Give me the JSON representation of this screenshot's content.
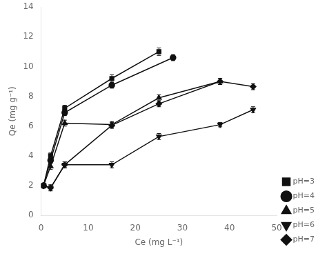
{
  "chart_data": {
    "type": "line",
    "xlabel": "Ce (mg L⁻¹)",
    "ylabel": "Qe (mg g⁻¹)",
    "color": "#111111",
    "grid": false,
    "legend": "lower right",
    "xlim": [
      0,
      50
    ],
    "ylim": [
      0,
      14
    ],
    "xticks": [
      0,
      10,
      20,
      30,
      40,
      50
    ],
    "yticks": [
      0,
      2,
      4,
      6,
      8,
      10,
      12,
      14
    ],
    "series": [
      {
        "name": "pH=3",
        "marker": "square",
        "x": [
          0.5,
          2,
          5,
          15,
          25
        ],
        "values": [
          2.0,
          4.0,
          7.2,
          9.2,
          11.0
        ],
        "yerr": [
          0.15,
          0.2,
          0.2,
          0.25,
          0.25
        ]
      },
      {
        "name": "pH=4",
        "marker": "circle",
        "x": [
          0.5,
          2,
          5,
          15,
          28
        ],
        "values": [
          2.0,
          3.7,
          6.9,
          8.75,
          10.6
        ],
        "yerr": [
          0.15,
          0.2,
          0.2,
          0.2,
          0.2
        ]
      },
      {
        "name": "pH=5",
        "marker": "triangle-up",
        "x": [
          0.5,
          2,
          5,
          15,
          25,
          38
        ],
        "values": [
          2.0,
          3.3,
          6.2,
          6.1,
          7.9,
          9.0
        ],
        "yerr": [
          0.15,
          0.2,
          0.2,
          0.2,
          0.2,
          0.2
        ]
      },
      {
        "name": "pH=6",
        "marker": "triangle-down",
        "x": [
          0.5,
          2,
          5,
          15,
          25,
          38,
          45
        ],
        "values": [
          2.0,
          1.85,
          3.4,
          3.4,
          5.3,
          6.1,
          7.1
        ],
        "yerr": [
          0.15,
          0.2,
          0.2,
          0.2,
          0.2,
          0.15,
          0.2
        ]
      },
      {
        "name": "pH=7",
        "marker": "diamond",
        "x": [
          0.5,
          2,
          5,
          15,
          25,
          38,
          45
        ],
        "values": [
          2.0,
          1.85,
          3.4,
          6.05,
          7.5,
          9.0,
          8.65
        ],
        "yerr": [
          0.15,
          0.2,
          0.2,
          0.2,
          0.2,
          0.2,
          0.2
        ]
      }
    ]
  }
}
